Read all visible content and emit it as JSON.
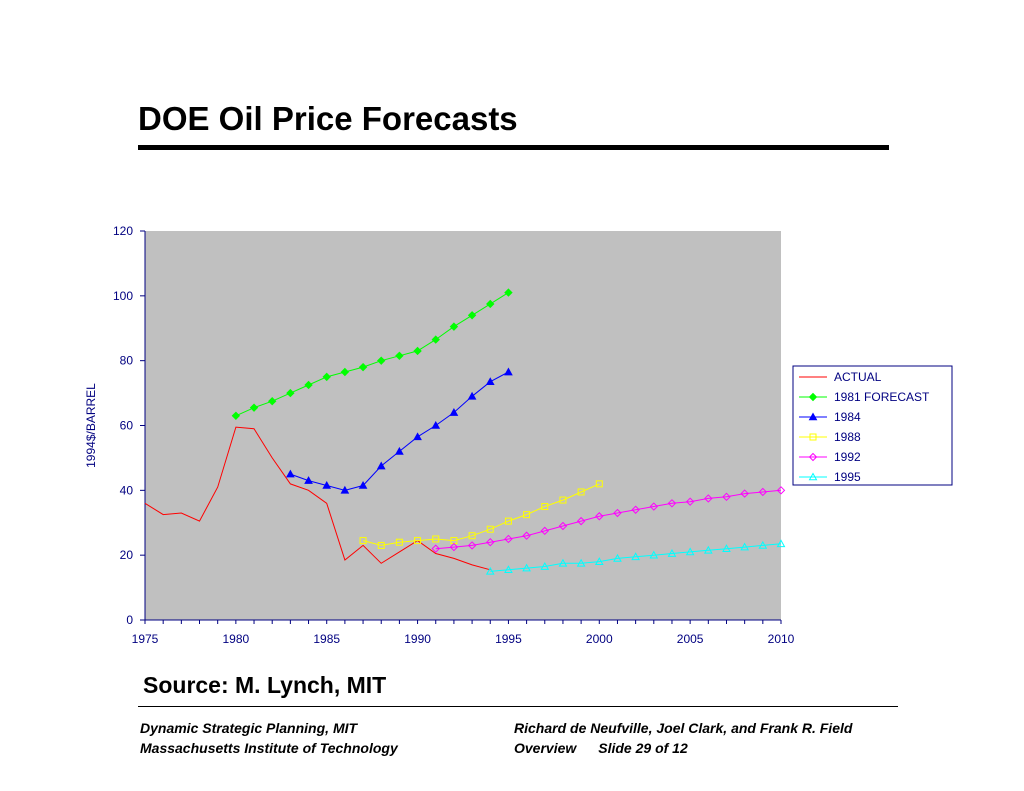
{
  "slide": {
    "title": "DOE Oil Price Forecasts",
    "source": "Source: M. Lynch, MIT"
  },
  "footer": {
    "left_line1": "Dynamic Strategic Planning, MIT",
    "left_line2": "Massachusetts Institute of Technology",
    "right_line1": "Richard de Neufville, Joel Clark, and Frank  R. Field",
    "right_line2a": "Overview",
    "right_line2b": "Slide 29 of 12"
  },
  "chart_data": {
    "type": "line",
    "title": "",
    "xlabel": "",
    "ylabel": "1994$/BARREL",
    "xlim": [
      1975,
      2010
    ],
    "ylim": [
      0,
      120
    ],
    "x_ticks": [
      1975,
      1980,
      1985,
      1990,
      1995,
      2000,
      2005,
      2010
    ],
    "y_ticks": [
      0,
      20,
      40,
      60,
      80,
      100,
      120
    ],
    "grid": false,
    "plot_background": "#C0C0C0",
    "legend_position": "right",
    "series": [
      {
        "name": "ACTUAL",
        "color": "#FF0000",
        "marker": "none",
        "x": [
          1975,
          1976,
          1977,
          1978,
          1979,
          1980,
          1981,
          1982,
          1983,
          1984,
          1985,
          1986,
          1987,
          1988,
          1989,
          1990,
          1991,
          1992,
          1993,
          1994
        ],
        "y": [
          36,
          32.5,
          33,
          30.5,
          41,
          59.5,
          59,
          50,
          42,
          40,
          36,
          18.5,
          23,
          17.5,
          21,
          24.5,
          20.5,
          19,
          17,
          15.5
        ]
      },
      {
        "name": "1981 FORECAST",
        "color": "#00FF00",
        "marker": "diamond-filled",
        "x": [
          1980,
          1981,
          1982,
          1983,
          1984,
          1985,
          1986,
          1987,
          1988,
          1989,
          1990,
          1991,
          1992,
          1993,
          1994,
          1995
        ],
        "y": [
          63,
          65.5,
          67.5,
          70,
          72.5,
          75,
          76.5,
          78,
          80,
          81.5,
          83,
          86.5,
          90.5,
          94,
          97.5,
          101
        ]
      },
      {
        "name": "1984",
        "color": "#0000FF",
        "marker": "triangle-filled",
        "x": [
          1983,
          1984,
          1985,
          1986,
          1987,
          1988,
          1989,
          1990,
          1991,
          1992,
          1993,
          1994,
          1995
        ],
        "y": [
          45,
          43,
          41.5,
          40,
          41.5,
          47.5,
          52,
          56.5,
          60,
          64,
          69,
          73.5,
          76.5
        ]
      },
      {
        "name": "1988",
        "color": "#FFFF00",
        "marker": "square-open",
        "x": [
          1987,
          1988,
          1989,
          1990,
          1991,
          1992,
          1993,
          1994,
          1995,
          1996,
          1997,
          1998,
          1999,
          2000
        ],
        "y": [
          24.5,
          23,
          24,
          24.5,
          25,
          24.5,
          26,
          28,
          30.5,
          32.5,
          35,
          37,
          39.5,
          42
        ]
      },
      {
        "name": "1992",
        "color": "#FF00FF",
        "marker": "diamond-open",
        "x": [
          1991,
          1992,
          1993,
          1994,
          1995,
          1996,
          1997,
          1998,
          1999,
          2000,
          2001,
          2002,
          2003,
          2004,
          2005,
          2006,
          2007,
          2008,
          2009,
          2010
        ],
        "y": [
          22,
          22.5,
          23,
          24,
          25,
          26,
          27.5,
          29,
          30.5,
          32,
          33,
          34,
          35,
          36,
          36.5,
          37.5,
          38,
          39,
          39.5,
          40
        ]
      },
      {
        "name": "1995",
        "color": "#00FFFF",
        "marker": "triangle-open",
        "x": [
          1994,
          1995,
          1996,
          1997,
          1998,
          1999,
          2000,
          2001,
          2002,
          2003,
          2004,
          2005,
          2006,
          2007,
          2008,
          2009,
          2010
        ],
        "y": [
          15,
          15.5,
          16,
          16.5,
          17.5,
          17.5,
          18,
          19,
          19.5,
          20,
          20.5,
          21,
          21.5,
          22,
          22.5,
          23,
          23.5
        ]
      }
    ]
  }
}
